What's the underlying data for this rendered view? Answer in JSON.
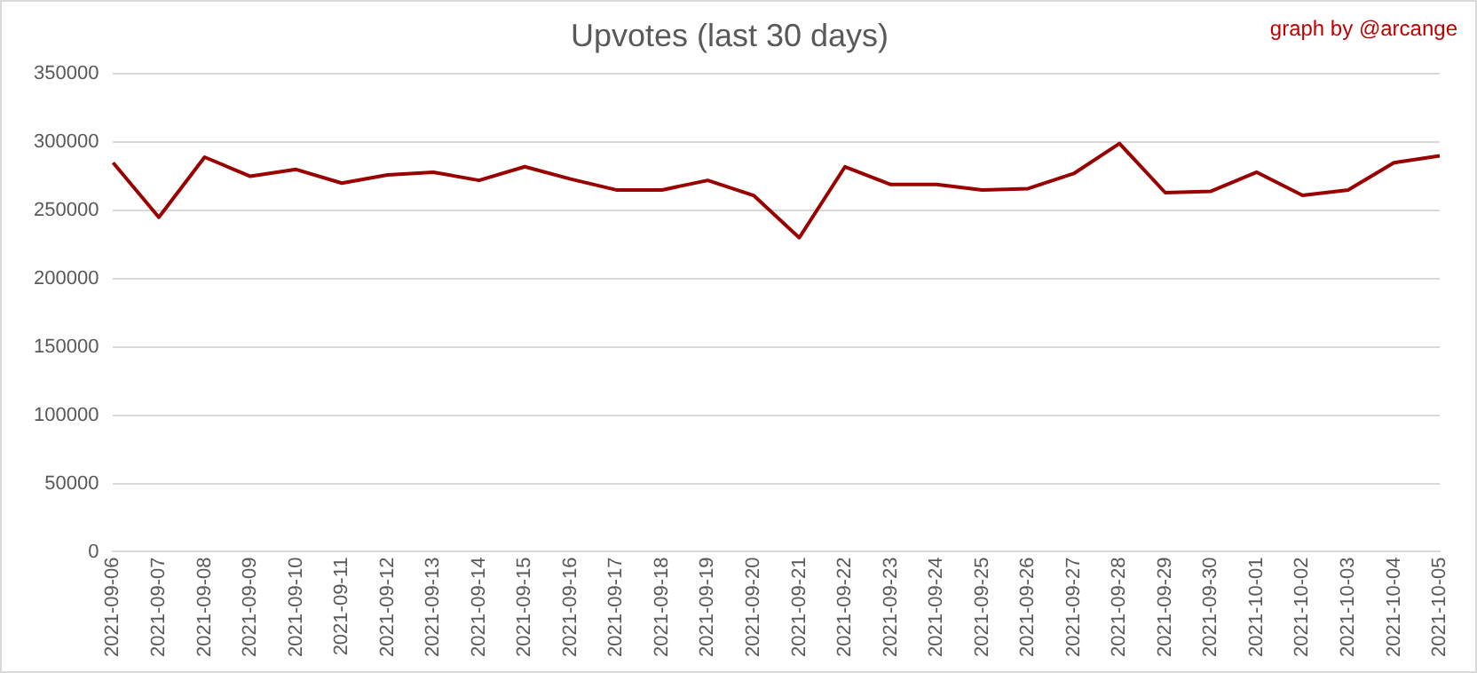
{
  "chart_data": {
    "type": "line",
    "title": "Upvotes (last 30 days)",
    "annotations": [
      "graph by @arcange"
    ],
    "categories": [
      "2021-09-06",
      "2021-09-07",
      "2021-09-08",
      "2021-09-09",
      "2021-09-10",
      "2021-09-11",
      "2021-09-12",
      "2021-09-13",
      "2021-09-14",
      "2021-09-15",
      "2021-09-16",
      "2021-09-17",
      "2021-09-18",
      "2021-09-19",
      "2021-09-20",
      "2021-09-21",
      "2021-09-22",
      "2021-09-23",
      "2021-09-24",
      "2021-09-25",
      "2021-09-26",
      "2021-09-27",
      "2021-09-28",
      "2021-09-29",
      "2021-09-30",
      "2021-10-01",
      "2021-10-02",
      "2021-10-03",
      "2021-10-04",
      "2021-10-05"
    ],
    "series": [
      {
        "color": "#990000",
        "values": [
          285000,
          245000,
          289000,
          275000,
          280000,
          270000,
          276000,
          278000,
          272000,
          282000,
          273000,
          265000,
          265000,
          272000,
          261000,
          230000,
          282000,
          269000,
          269000,
          265000,
          266000,
          277000,
          299000,
          263000,
          264000,
          278000,
          261000,
          265000,
          285000,
          290000
        ]
      }
    ],
    "ylim": [
      0,
      350000
    ],
    "yticks": [
      0,
      50000,
      100000,
      150000,
      200000,
      250000,
      300000,
      350000
    ],
    "grid": "y",
    "legend": false,
    "marker": "none",
    "line_style": "solid"
  }
}
